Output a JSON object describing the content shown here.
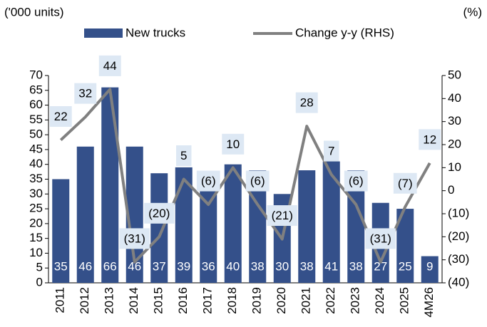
{
  "chart_data": {
    "type": "bar-line",
    "y_label": "('000 units)",
    "y2_label": "(%)",
    "categories": [
      "2011",
      "2012",
      "2013",
      "2014",
      "2015",
      "2016",
      "2017",
      "2018",
      "2019",
      "2020",
      "2021",
      "2022",
      "2023",
      "2024",
      "2025",
      "4M26"
    ],
    "series": [
      {
        "name": "New trucks",
        "type": "bar",
        "color": "#34508a",
        "values": [
          35,
          46,
          66,
          46,
          37,
          39,
          36,
          40,
          38,
          30,
          38,
          41,
          38,
          27,
          25,
          9
        ]
      },
      {
        "name": "Change y-y (RHS)",
        "type": "line",
        "axis": "y2",
        "color": "#808080",
        "values": [
          22,
          32,
          44,
          -31,
          -20,
          5,
          -6,
          10,
          -6,
          -21,
          28,
          7,
          -6,
          -31,
          -7,
          12
        ],
        "value_labels": [
          "22",
          "32",
          "44",
          "(31)",
          "(20)",
          "5",
          "(6)",
          "10",
          "(6)",
          "(21)",
          "28",
          "7",
          "(6)",
          "(31)",
          "(7)",
          "12"
        ]
      }
    ],
    "ylim": [
      0,
      70
    ],
    "yticks": [
      0,
      5,
      10,
      15,
      20,
      25,
      30,
      35,
      40,
      45,
      50,
      55,
      60,
      65,
      70
    ],
    "y2lim": [
      -40,
      50
    ],
    "y2ticks": [
      {
        "value": -40,
        "label": "(40)"
      },
      {
        "value": -30,
        "label": "(30)"
      },
      {
        "value": -20,
        "label": "(20)"
      },
      {
        "value": -10,
        "label": "(10)"
      },
      0,
      10,
      20,
      30,
      40,
      50
    ],
    "grid": false
  }
}
